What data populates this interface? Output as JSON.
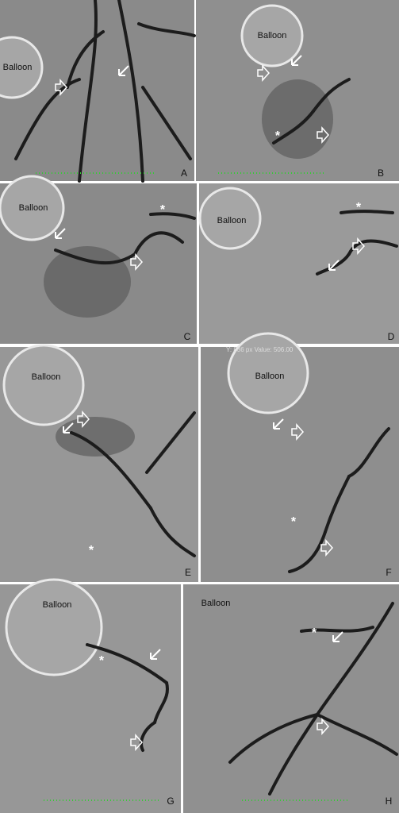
{
  "overlay_text": "Y: 836 px Value: 506.00",
  "panels": [
    {
      "label": "A",
      "balloon": "Balloon"
    },
    {
      "label": "B",
      "balloon": "Balloon",
      "star": "*"
    },
    {
      "label": "C",
      "balloon": "Balloon",
      "star": "*"
    },
    {
      "label": "D",
      "balloon": "Balloon",
      "star": "*"
    },
    {
      "label": "E",
      "balloon": "Balloon",
      "star": "*"
    },
    {
      "label": "F",
      "balloon": "Balloon",
      "star": "*"
    },
    {
      "label": "G",
      "balloon": "Balloon",
      "star": "*"
    },
    {
      "label": "H",
      "balloon": "Balloon",
      "star": "*"
    }
  ]
}
